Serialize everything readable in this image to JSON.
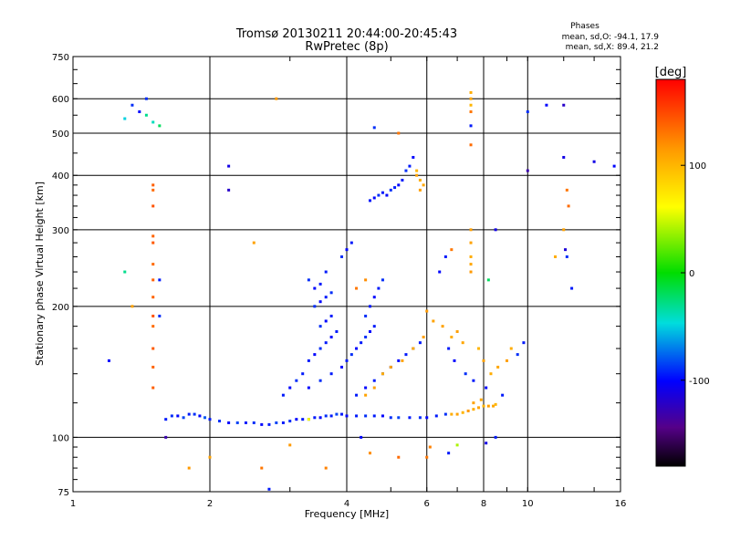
{
  "chart_data": {
    "type": "scatter",
    "title": "Tromsø 20130211 20:44:00-20:45:43",
    "subtitle": "RwPretec (8p)",
    "xlabel": "Frequency [MHz]",
    "ylabel": "Stationary phase Virtual Height [km]",
    "xscale": "log",
    "yscale": "log",
    "xlim": [
      1,
      16
    ],
    "ylim": [
      75,
      750
    ],
    "x_ticks": [
      1,
      2,
      4,
      6,
      8,
      10,
      16
    ],
    "x_tick_labels": [
      "1",
      "2",
      "4",
      "6",
      "8",
      "10",
      "16"
    ],
    "y_ticks": [
      75,
      100,
      200,
      300,
      400,
      500,
      600,
      750
    ],
    "y_tick_labels": [
      "75",
      "100",
      "200",
      "300",
      "400",
      "500",
      "600",
      "750"
    ],
    "grid": true,
    "phase_info": {
      "title": "Phases",
      "line_o": "mean, sd,O: -94.1, 17.9",
      "line_x": "mean, sd,X:  89.4, 21.2"
    },
    "colorbar": {
      "label": "[deg]",
      "range": [
        -180,
        180
      ],
      "ticks": [
        100,
        0,
        -100
      ],
      "tick_labels": [
        "100",
        "0",
        "-100"
      ]
    },
    "points": [
      [
        1.6,
        110,
        -95
      ],
      [
        1.65,
        112,
        -90
      ],
      [
        1.7,
        112,
        -100
      ],
      [
        1.75,
        111,
        -85
      ],
      [
        1.8,
        113,
        -95
      ],
      [
        1.85,
        113,
        -90
      ],
      [
        1.9,
        112,
        -100
      ],
      [
        1.95,
        111,
        -80
      ],
      [
        2.0,
        110,
        -95
      ],
      [
        2.1,
        109,
        -90
      ],
      [
        2.2,
        108,
        -100
      ],
      [
        2.3,
        108,
        -85
      ],
      [
        2.4,
        108,
        -95
      ],
      [
        2.5,
        108,
        -90
      ],
      [
        2.6,
        107,
        -100
      ],
      [
        2.7,
        107,
        -95
      ],
      [
        2.8,
        108,
        -85
      ],
      [
        2.9,
        108,
        -95
      ],
      [
        3.0,
        109,
        -90
      ],
      [
        3.1,
        110,
        -100
      ],
      [
        3.2,
        110,
        -95
      ],
      [
        3.3,
        110,
        -85
      ],
      [
        3.4,
        111,
        -95
      ],
      [
        3.5,
        111,
        -100
      ],
      [
        3.6,
        112,
        -90
      ],
      [
        3.7,
        112,
        -95
      ],
      [
        3.8,
        113,
        -85
      ],
      [
        3.9,
        113,
        -95
      ],
      [
        4.0,
        112,
        -100
      ],
      [
        4.2,
        112,
        -95
      ],
      [
        4.4,
        112,
        -90
      ],
      [
        4.6,
        112,
        -95
      ],
      [
        4.8,
        112,
        -100
      ],
      [
        5.0,
        111,
        -90
      ],
      [
        5.2,
        111,
        -85
      ],
      [
        5.5,
        111,
        -95
      ],
      [
        5.8,
        111,
        -90
      ],
      [
        6.0,
        111,
        -100
      ],
      [
        6.3,
        112,
        -95
      ],
      [
        6.6,
        113,
        -90
      ],
      [
        6.8,
        113,
        105
      ],
      [
        7.0,
        113,
        110
      ],
      [
        7.2,
        114,
        100
      ],
      [
        7.4,
        115,
        115
      ],
      [
        7.6,
        116,
        105
      ],
      [
        7.8,
        117,
        110
      ],
      [
        8.0,
        118,
        100
      ],
      [
        8.2,
        118,
        112
      ],
      [
        8.4,
        118,
        108
      ],
      [
        8.5,
        119,
        100
      ],
      [
        7.6,
        120,
        110
      ],
      [
        7.9,
        122,
        108
      ],
      [
        3.3,
        150,
        -95
      ],
      [
        3.4,
        155,
        -100
      ],
      [
        3.5,
        160,
        -90
      ],
      [
        3.6,
        165,
        -95
      ],
      [
        3.7,
        170,
        -100
      ],
      [
        3.8,
        175,
        -95
      ],
      [
        3.5,
        180,
        -90
      ],
      [
        3.6,
        185,
        -100
      ],
      [
        3.7,
        190,
        -95
      ],
      [
        3.4,
        200,
        -90
      ],
      [
        3.5,
        205,
        -100
      ],
      [
        3.6,
        210,
        -95
      ],
      [
        3.7,
        215,
        -90
      ],
      [
        3.4,
        220,
        -100
      ],
      [
        3.5,
        225,
        -95
      ],
      [
        3.3,
        230,
        -90
      ],
      [
        3.6,
        240,
        -95
      ],
      [
        3.2,
        140,
        -95
      ],
      [
        3.1,
        135,
        -90
      ],
      [
        3.0,
        130,
        -100
      ],
      [
        2.9,
        125,
        -95
      ],
      [
        3.3,
        130,
        -100
      ],
      [
        3.5,
        135,
        -90
      ],
      [
        3.7,
        140,
        -95
      ],
      [
        3.9,
        145,
        -100
      ],
      [
        4.0,
        150,
        -95
      ],
      [
        4.1,
        155,
        -90
      ],
      [
        4.2,
        160,
        -100
      ],
      [
        4.3,
        165,
        -95
      ],
      [
        4.4,
        170,
        -90
      ],
      [
        4.5,
        175,
        -100
      ],
      [
        4.6,
        180,
        -95
      ],
      [
        4.4,
        190,
        -90
      ],
      [
        4.5,
        200,
        -95
      ],
      [
        4.6,
        210,
        -100
      ],
      [
        4.7,
        220,
        -95
      ],
      [
        4.8,
        230,
        -90
      ],
      [
        4.2,
        125,
        -95
      ],
      [
        4.4,
        130,
        -100
      ],
      [
        4.6,
        135,
        -95
      ],
      [
        4.8,
        140,
        -90
      ],
      [
        5.0,
        145,
        -95
      ],
      [
        5.2,
        150,
        -100
      ],
      [
        5.4,
        155,
        -95
      ],
      [
        5.6,
        160,
        -90
      ],
      [
        5.8,
        165,
        -95
      ],
      [
        4.5,
        350,
        -95
      ],
      [
        4.6,
        355,
        -100
      ],
      [
        4.7,
        360,
        -90
      ],
      [
        4.8,
        365,
        -95
      ],
      [
        4.9,
        360,
        -100
      ],
      [
        5.0,
        370,
        -90
      ],
      [
        5.1,
        375,
        -95
      ],
      [
        5.2,
        380,
        -100
      ],
      [
        5.3,
        390,
        -95
      ],
      [
        5.4,
        410,
        -90
      ],
      [
        5.5,
        420,
        -95
      ],
      [
        5.6,
        440,
        -100
      ],
      [
        5.7,
        400,
        110
      ],
      [
        5.8,
        390,
        105
      ],
      [
        5.9,
        380,
        108
      ],
      [
        5.7,
        410,
        100
      ],
      [
        5.8,
        370,
        112
      ],
      [
        7.5,
        620,
        105
      ],
      [
        7.5,
        600,
        108
      ],
      [
        7.5,
        580,
        100
      ],
      [
        7.5,
        300,
        112
      ],
      [
        7.5,
        280,
        110
      ],
      [
        7.5,
        260,
        105
      ],
      [
        7.5,
        250,
        108
      ],
      [
        7.5,
        240,
        115
      ],
      [
        7.5,
        470,
        135
      ],
      [
        7.5,
        520,
        -95
      ],
      [
        7.5,
        560,
        130
      ],
      [
        1.5,
        380,
        140
      ],
      [
        1.5,
        370,
        135
      ],
      [
        1.5,
        340,
        145
      ],
      [
        1.5,
        290,
        138
      ],
      [
        1.5,
        280,
        142
      ],
      [
        1.5,
        250,
        135
      ],
      [
        1.5,
        230,
        140
      ],
      [
        1.5,
        210,
        138
      ],
      [
        1.5,
        190,
        145
      ],
      [
        1.5,
        180,
        135
      ],
      [
        1.5,
        160,
        142
      ],
      [
        1.5,
        145,
        138
      ],
      [
        1.5,
        130,
        140
      ],
      [
        1.55,
        230,
        -95
      ],
      [
        1.55,
        190,
        -90
      ],
      [
        1.45,
        600,
        -90
      ],
      [
        1.45,
        550,
        -30
      ],
      [
        1.5,
        530,
        -40
      ],
      [
        1.55,
        520,
        -20
      ],
      [
        1.4,
        560,
        -100
      ],
      [
        1.35,
        580,
        -90
      ],
      [
        1.3,
        540,
        -50
      ],
      [
        1.2,
        150,
        -100
      ],
      [
        1.3,
        240,
        -30
      ],
      [
        1.35,
        200,
        110
      ],
      [
        1.6,
        100,
        -130
      ],
      [
        2.2,
        420,
        -110
      ],
      [
        2.2,
        370,
        -120
      ],
      [
        2.5,
        280,
        110
      ],
      [
        2.8,
        600,
        115
      ],
      [
        3.9,
        260,
        -90
      ],
      [
        4.0,
        270,
        -100
      ],
      [
        4.1,
        280,
        -95
      ],
      [
        4.2,
        220,
        130
      ],
      [
        4.6,
        515,
        -90
      ],
      [
        5.2,
        500,
        130
      ],
      [
        4.4,
        230,
        120
      ],
      [
        6.4,
        240,
        -100
      ],
      [
        6.6,
        260,
        -95
      ],
      [
        6.8,
        270,
        130
      ],
      [
        8.2,
        230,
        -20
      ],
      [
        8.5,
        300,
        -110
      ],
      [
        10.0,
        560,
        -90
      ],
      [
        11.0,
        580,
        -100
      ],
      [
        12.0,
        580,
        -120
      ],
      [
        12.0,
        440,
        -110
      ],
      [
        12.2,
        370,
        130
      ],
      [
        12.3,
        340,
        135
      ],
      [
        12.0,
        300,
        110
      ],
      [
        12.1,
        270,
        -115
      ],
      [
        12.2,
        260,
        -90
      ],
      [
        14.0,
        430,
        -110
      ],
      [
        15.5,
        420,
        -100
      ],
      [
        10.0,
        410,
        -130
      ],
      [
        11.5,
        260,
        105
      ],
      [
        12.5,
        220,
        -95
      ],
      [
        6.5,
        180,
        110
      ],
      [
        6.8,
        170,
        105
      ],
      [
        7.0,
        175,
        112
      ],
      [
        7.2,
        165,
        108
      ],
      [
        7.8,
        160,
        100
      ],
      [
        8.0,
        150,
        110
      ],
      [
        8.3,
        140,
        105
      ],
      [
        8.6,
        145,
        108
      ],
      [
        9.0,
        150,
        112
      ],
      [
        9.2,
        160,
        105
      ],
      [
        9.5,
        155,
        -90
      ],
      [
        9.8,
        165,
        -95
      ],
      [
        6.0,
        195,
        115
      ],
      [
        6.2,
        185,
        110
      ],
      [
        6.7,
        160,
        -95
      ],
      [
        6.9,
        150,
        -100
      ],
      [
        7.3,
        140,
        -90
      ],
      [
        7.6,
        135,
        -95
      ],
      [
        8.1,
        130,
        -100
      ],
      [
        8.8,
        125,
        -95
      ],
      [
        4.4,
        125,
        110
      ],
      [
        4.6,
        130,
        112
      ],
      [
        4.8,
        140,
        105
      ],
      [
        5.0,
        145,
        108
      ],
      [
        5.3,
        150,
        110
      ],
      [
        5.6,
        160,
        105
      ],
      [
        5.9,
        170,
        112
      ],
      [
        6.0,
        90,
        130
      ],
      [
        6.1,
        95,
        125
      ],
      [
        6.7,
        92,
        -95
      ],
      [
        7.0,
        96,
        40
      ],
      [
        8.1,
        97,
        -110
      ],
      [
        8.5,
        100,
        -95
      ],
      [
        2.0,
        90,
        110
      ],
      [
        2.6,
        85,
        130
      ],
      [
        3.0,
        96,
        115
      ],
      [
        3.6,
        85,
        125
      ],
      [
        4.5,
        92,
        120
      ],
      [
        5.2,
        90,
        135
      ],
      [
        1.8,
        85,
        115
      ],
      [
        2.7,
        76,
        -95
      ],
      [
        3.3,
        110,
        60
      ],
      [
        4.3,
        100,
        -100
      ]
    ]
  }
}
